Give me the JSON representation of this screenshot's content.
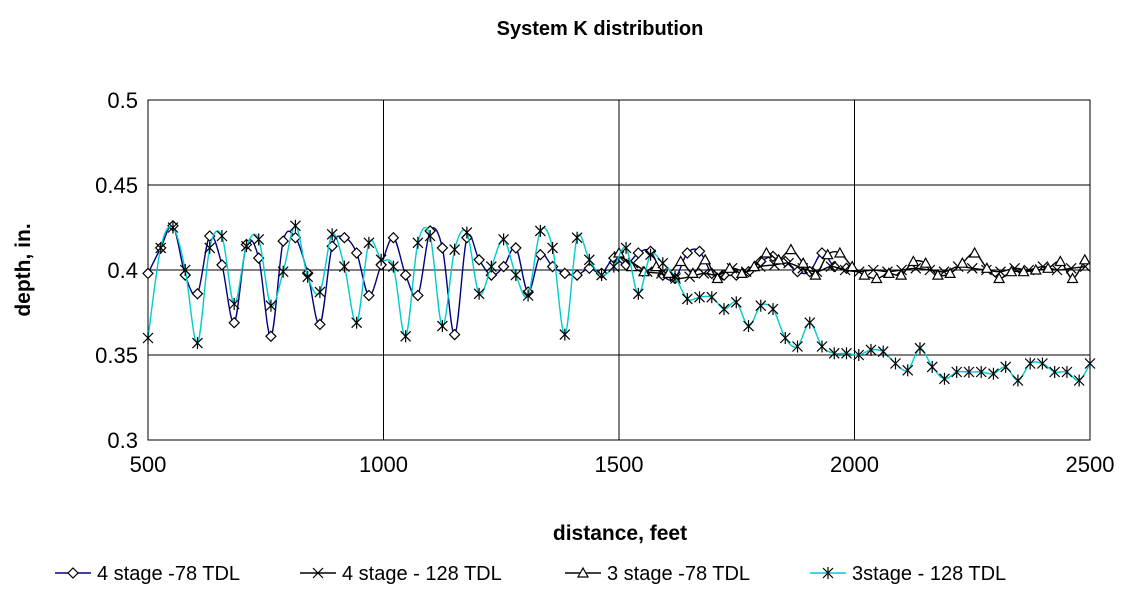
{
  "chart_data": {
    "type": "line",
    "title": "System K distribution",
    "xlabel": "distance, feet",
    "ylabel": "depth, in.",
    "xlim": [
      500,
      2500
    ],
    "ylim": [
      0.3,
      0.5
    ],
    "xticks": [
      "500",
      "1000",
      "1500",
      "2000",
      "2500"
    ],
    "yticks": [
      "0.3",
      "0.35",
      "0.4",
      "0.45",
      "0.5"
    ],
    "grid": true,
    "legend_position": "bottom",
    "series": [
      {
        "name": "4 stage -78 TDL",
        "color": "#000080",
        "marker": "diamond",
        "x": [
          500,
          527,
          553,
          579,
          605,
          631,
          657,
          683,
          709,
          735,
          761,
          787,
          813,
          839,
          865,
          891,
          917,
          943,
          969,
          995,
          1021,
          1047,
          1073,
          1099,
          1125,
          1151,
          1177,
          1203,
          1229,
          1255,
          1281,
          1307,
          1333,
          1359,
          1385,
          1411,
          1437,
          1463,
          1489,
          1515,
          1541,
          1567,
          1593,
          1619,
          1645,
          1671,
          1697,
          1723,
          1749,
          1775,
          1801,
          1827,
          1853,
          1879,
          1905,
          1931,
          1957,
          1983
        ],
        "y": [
          0.398,
          0.413,
          0.426,
          0.397,
          0.386,
          0.42,
          0.403,
          0.369,
          0.415,
          0.407,
          0.361,
          0.417,
          0.419,
          0.398,
          0.368,
          0.414,
          0.419,
          0.41,
          0.385,
          0.403,
          0.419,
          0.397,
          0.385,
          0.423,
          0.413,
          0.362,
          0.419,
          0.406,
          0.397,
          0.402,
          0.413,
          0.387,
          0.409,
          0.402,
          0.398,
          0.397,
          0.401,
          0.398,
          0.407,
          0.403,
          0.41,
          0.411,
          0.397,
          0.395,
          0.41,
          0.411,
          0.398,
          0.397,
          0.397,
          0.399,
          0.405,
          0.408,
          0.405,
          0.399,
          0.399,
          0.41,
          0.402,
          0.401
        ]
      },
      {
        "name": "4 stage - 128 TDL",
        "color": "#000000",
        "marker": "x",
        "x": [
          1500,
          1530,
          1560,
          1590,
          1620,
          1650,
          1680,
          1710,
          1740,
          1770,
          1800,
          1830,
          1860,
          1890,
          1920,
          1950,
          1980,
          2010,
          2040,
          2070,
          2100,
          2130,
          2160,
          2190,
          2220,
          2250,
          2280,
          2310,
          2340,
          2370,
          2400,
          2430,
          2460,
          2490
        ],
        "y": [
          0.408,
          0.404,
          0.399,
          0.398,
          0.395,
          0.396,
          0.398,
          0.397,
          0.401,
          0.399,
          0.402,
          0.403,
          0.404,
          0.401,
          0.399,
          0.402,
          0.4,
          0.399,
          0.4,
          0.399,
          0.4,
          0.401,
          0.4,
          0.399,
          0.402,
          0.401,
          0.4,
          0.399,
          0.401,
          0.4,
          0.402,
          0.4,
          0.401,
          0.402
        ]
      },
      {
        "name": "3 stage -78 TDL",
        "color": "#000000",
        "marker": "triangle",
        "x": [
          1500,
          1527,
          1553,
          1579,
          1605,
          1631,
          1657,
          1683,
          1709,
          1735,
          1761,
          1787,
          1813,
          1839,
          1865,
          1891,
          1917,
          1943,
          1969,
          1995,
          2021,
          2047,
          2073,
          2099,
          2125,
          2151,
          2177,
          2203,
          2229,
          2255,
          2281,
          2307,
          2333,
          2359,
          2385,
          2411,
          2437,
          2463,
          2489
        ],
        "y": [
          0.41,
          0.402,
          0.399,
          0.402,
          0.398,
          0.405,
          0.398,
          0.406,
          0.395,
          0.401,
          0.398,
          0.402,
          0.41,
          0.406,
          0.412,
          0.404,
          0.397,
          0.409,
          0.41,
          0.402,
          0.397,
          0.395,
          0.398,
          0.397,
          0.405,
          0.404,
          0.397,
          0.398,
          0.404,
          0.41,
          0.401,
          0.395,
          0.399,
          0.399,
          0.4,
          0.401,
          0.405,
          0.395,
          0.406
        ]
      },
      {
        "name": "3stage - 128 TDL",
        "color": "#00CCCC",
        "marker": "asterisk",
        "x": [
          500,
          527,
          553,
          579,
          605,
          631,
          657,
          683,
          709,
          735,
          761,
          787,
          813,
          839,
          865,
          891,
          917,
          943,
          969,
          995,
          1021,
          1047,
          1073,
          1099,
          1125,
          1151,
          1177,
          1203,
          1229,
          1255,
          1281,
          1307,
          1333,
          1359,
          1385,
          1411,
          1437,
          1463,
          1489,
          1515,
          1541,
          1567,
          1593,
          1619,
          1645,
          1671,
          1697,
          1723,
          1749,
          1775,
          1801,
          1827,
          1853,
          1879,
          1905,
          1931,
          1957,
          1983,
          2009,
          2035,
          2061,
          2087,
          2113,
          2139,
          2165,
          2191,
          2217,
          2243,
          2269,
          2295,
          2321,
          2347,
          2373,
          2399,
          2425,
          2451,
          2477,
          2500
        ],
        "y": [
          0.36,
          0.413,
          0.425,
          0.4,
          0.357,
          0.413,
          0.42,
          0.38,
          0.414,
          0.418,
          0.379,
          0.399,
          0.426,
          0.396,
          0.387,
          0.421,
          0.402,
          0.369,
          0.416,
          0.406,
          0.402,
          0.361,
          0.416,
          0.42,
          0.367,
          0.412,
          0.422,
          0.386,
          0.402,
          0.418,
          0.397,
          0.385,
          0.423,
          0.413,
          0.362,
          0.419,
          0.406,
          0.397,
          0.402,
          0.413,
          0.386,
          0.409,
          0.404,
          0.396,
          0.383,
          0.384,
          0.384,
          0.377,
          0.381,
          0.367,
          0.379,
          0.377,
          0.36,
          0.355,
          0.369,
          0.355,
          0.351,
          0.351,
          0.35,
          0.353,
          0.352,
          0.345,
          0.341,
          0.354,
          0.343,
          0.336,
          0.34,
          0.34,
          0.34,
          0.339,
          0.343,
          0.335,
          0.345,
          0.345,
          0.34,
          0.34,
          0.335,
          0.345
        ]
      }
    ]
  }
}
